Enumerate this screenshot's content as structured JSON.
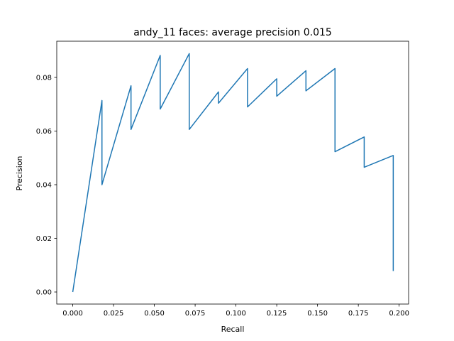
{
  "chart_data": {
    "type": "line",
    "title": "andy_11 faces: average precision 0.015",
    "xlabel": "Recall",
    "ylabel": "Precision",
    "xlim": [
      -0.0098,
      0.2058
    ],
    "ylim": [
      -0.0045,
      0.0935
    ],
    "xticks": [
      0.0,
      0.025,
      0.05,
      0.075,
      0.1,
      0.125,
      0.15,
      0.175,
      0.2
    ],
    "xtick_labels": [
      "0.000",
      "0.025",
      "0.050",
      "0.075",
      "0.100",
      "0.125",
      "0.150",
      "0.175",
      "0.200"
    ],
    "yticks": [
      0.0,
      0.02,
      0.04,
      0.06,
      0.08
    ],
    "ytick_labels": [
      "0.00",
      "0.02",
      "0.04",
      "0.06",
      "0.08"
    ],
    "grid": false,
    "legend": "none",
    "series": [
      {
        "color": "#1f77b4",
        "x": [
          0.0,
          0.0179,
          0.0179,
          0.0357,
          0.0357,
          0.0536,
          0.0536,
          0.0714,
          0.0714,
          0.0893,
          0.0893,
          0.1071,
          0.1071,
          0.125,
          0.125,
          0.1429,
          0.1429,
          0.1607,
          0.1607,
          0.1786,
          0.1786,
          0.1964,
          0.1964
        ],
        "y": [
          0.0,
          0.0714,
          0.04,
          0.0769,
          0.0606,
          0.0882,
          0.0682,
          0.0889,
          0.0606,
          0.0746,
          0.0704,
          0.0833,
          0.069,
          0.0795,
          0.073,
          0.0825,
          0.075,
          0.0833,
          0.0523,
          0.0578,
          0.0465,
          0.0509,
          0.0078
        ]
      }
    ]
  }
}
